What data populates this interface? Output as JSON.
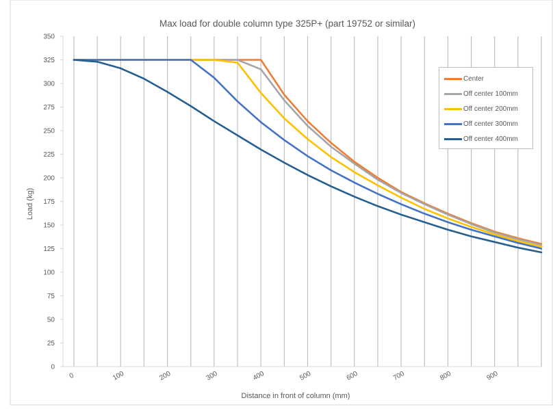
{
  "chart_data": {
    "type": "line",
    "title": "Max load for double column type 325P+ (part 19752 or similar)",
    "xlabel": "Distance in front of column (mm)",
    "ylabel": "Load (kg)",
    "ylim": [
      0,
      350
    ],
    "yticks": [
      "0",
      "25",
      "50",
      "75",
      "100",
      "125",
      "150",
      "175",
      "200",
      "225",
      "250",
      "275",
      "300",
      "325",
      "350"
    ],
    "x": [
      0,
      50,
      100,
      150,
      200,
      250,
      300,
      350,
      400,
      450,
      500,
      550,
      600,
      650,
      700,
      750,
      800,
      850,
      900,
      950,
      1000
    ],
    "xticks": [
      "0",
      "100",
      "200",
      "300",
      "400",
      "500",
      "600",
      "700",
      "800",
      "900"
    ],
    "grid": "vertical",
    "legend_position": "right",
    "series": [
      {
        "name": "Center",
        "color": "#ED7D31",
        "values": [
          325,
          325,
          325,
          325,
          325,
          325,
          325,
          325,
          325,
          288,
          260,
          237,
          217,
          200,
          185,
          173,
          162,
          152,
          143,
          136,
          130
        ]
      },
      {
        "name": "Off center 100mm",
        "color": "#A5A5A5",
        "values": [
          325,
          325,
          325,
          325,
          325,
          325,
          325,
          325,
          315,
          282,
          255,
          233,
          215,
          198,
          184,
          172,
          161,
          151,
          142,
          135,
          129
        ]
      },
      {
        "name": "Off center 200mm",
        "color": "#FFC000",
        "values": [
          325,
          325,
          325,
          325,
          325,
          325,
          325,
          322,
          290,
          263,
          241,
          222,
          206,
          192,
          179,
          167,
          157,
          148,
          140,
          133,
          127
        ]
      },
      {
        "name": "Off center 300mm",
        "color": "#4472C4",
        "values": [
          325,
          325,
          325,
          325,
          325,
          325,
          306,
          281,
          259,
          240,
          223,
          208,
          195,
          183,
          172,
          162,
          153,
          145,
          138,
          131,
          125
        ]
      },
      {
        "name": "Off center 400mm",
        "color": "#255E91",
        "values": [
          325,
          323,
          316,
          305,
          291,
          276,
          260,
          245,
          230,
          216,
          203,
          191,
          180,
          170,
          161,
          153,
          145,
          138,
          132,
          126,
          121
        ]
      }
    ]
  }
}
